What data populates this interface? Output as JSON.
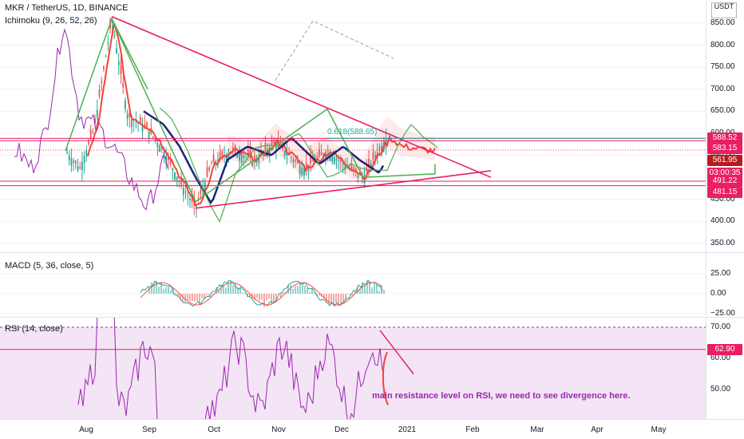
{
  "header": {
    "symbol_line": "MKR / TetherUS, 1D, BINANCE",
    "ichimoku_label": "Ichimoku (9, 26, 52, 26)",
    "macd_label": "MACD (5, 36, close, 5)",
    "rsi_label": "RSI (14, close)",
    "currency": "USDT"
  },
  "price_axis": {
    "ticks": [
      "850.00",
      "800.00",
      "750.00",
      "700.00",
      "650.00",
      "600.00",
      "550.00",
      "500.00",
      "450.00",
      "400.00",
      "350.00"
    ],
    "tags": [
      {
        "text": "588.52",
        "color": "#e91e63"
      },
      {
        "text": "583.15",
        "color": "#e91e63"
      },
      {
        "text": "561.95",
        "color": "#b71c1c"
      },
      {
        "text": "03:00:35",
        "color": "#e91e63"
      },
      {
        "text": "491.22",
        "color": "#e91e63"
      },
      {
        "text": "481.15",
        "color": "#e91e63"
      }
    ]
  },
  "macd_axis": {
    "ticks": [
      "25.00",
      "0.00",
      "−25.00"
    ]
  },
  "rsi_axis": {
    "ticks": [
      "70.00",
      "60.00",
      "50.00"
    ],
    "tag": {
      "text": "62.90",
      "color": "#e91e63"
    }
  },
  "time_axis": {
    "labels": [
      "Aug",
      "Sep",
      "Oct",
      "Nov",
      "Dec",
      "2021",
      "Feb",
      "Mar",
      "Apr",
      "May"
    ]
  },
  "annotations": {
    "fib_label": "0.618(588.65)",
    "rsi_note": "main resistance level on RSI, we need to see divergence here."
  },
  "chart_data": {
    "type": "candlestick",
    "title": "MKR / TetherUS, 1D, BINANCE",
    "price_range": [
      330,
      880
    ],
    "x": [
      "Aug",
      "Sep",
      "Oct",
      "Nov",
      "Dec",
      "2021",
      "Feb",
      "Mar",
      "Apr",
      "May"
    ],
    "last_price": 561.95,
    "horizontal_levels": [
      588.52,
      583.15,
      491.22,
      481.15
    ],
    "series": [
      {
        "name": "MACD (5, 36, close, 5)",
        "range": [
          -25,
          35
        ]
      },
      {
        "name": "RSI (14, close)",
        "levels": [
          70,
          62.9
        ],
        "range": [
          40,
          72
        ]
      }
    ],
    "colors": {
      "up": "#26a69a",
      "down": "#ef5350",
      "trendline": "#e91e63",
      "rsi_band": "#e1bee7"
    }
  }
}
